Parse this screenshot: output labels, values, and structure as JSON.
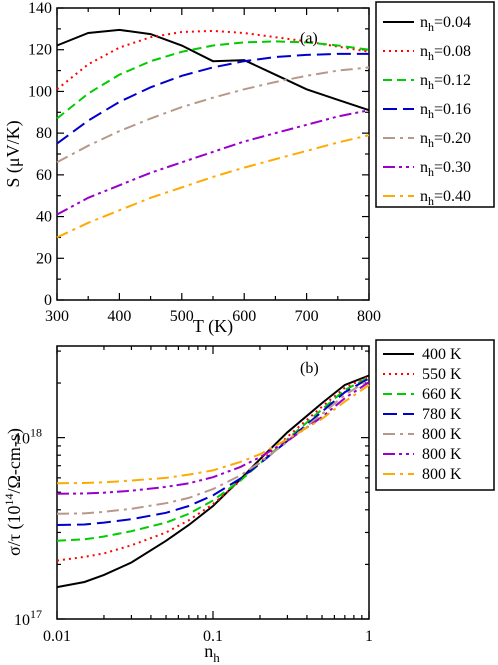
{
  "chart_data": [
    {
      "type": "line",
      "panel_label": "(a)",
      "xlabel": "T (K)",
      "ylabel": "S (μV/K)",
      "xlim": [
        300,
        800
      ],
      "ylim": [
        0,
        140
      ],
      "xticks": [
        300,
        400,
        500,
        600,
        700,
        800
      ],
      "yticks": [
        0,
        20,
        40,
        60,
        80,
        100,
        120,
        140
      ],
      "grid": false,
      "legend_position": "outside-right",
      "x": [
        300,
        350,
        400,
        450,
        500,
        550,
        600,
        650,
        700,
        750,
        800
      ],
      "series": [
        {
          "name": "n",
          "subscript": "h",
          "suffix": "=0.04",
          "color": "#000000",
          "dash": "",
          "values": [
            122,
            128,
            129.5,
            127.5,
            122,
            114.5,
            115,
            108,
            101,
            96,
            91
          ]
        },
        {
          "name": "n",
          "subscript": "h",
          "suffix": "=0.08",
          "color": "#ff0000",
          "dash": "2,4",
          "values": [
            101,
            113,
            121,
            126,
            128.5,
            129,
            128,
            126,
            124,
            121.5,
            119
          ]
        },
        {
          "name": "n",
          "subscript": "h",
          "suffix": "=0.12",
          "color": "#00cc00",
          "dash": "9,5",
          "values": [
            87,
            99,
            108,
            114.5,
            119,
            122,
            123.5,
            124,
            123.5,
            122,
            120
          ]
        },
        {
          "name": "n",
          "subscript": "h",
          "suffix": "=0.16",
          "color": "#0000cc",
          "dash": "14,6",
          "values": [
            75,
            86,
            95,
            102,
            107.5,
            111.5,
            114.5,
            116.5,
            117.5,
            118,
            118
          ]
        },
        {
          "name": "n",
          "subscript": "h",
          "suffix": "=0.20",
          "color": "#b8988a",
          "dash": "12,5,3,5",
          "values": [
            66,
            74,
            81,
            87,
            92.5,
            97,
            101,
            104.5,
            107.5,
            110,
            111.5
          ]
        },
        {
          "name": "n",
          "subscript": "h",
          "suffix": "=0.30",
          "color": "#9900cc",
          "dash": "12,4,3,4,3,4",
          "values": [
            41,
            49,
            55,
            61,
            66,
            71,
            76,
            80,
            84,
            88,
            91
          ]
        },
        {
          "name": "n",
          "subscript": "h",
          "suffix": "=0.40",
          "color": "#ffaa00",
          "dash": "12,5,3,5",
          "values": [
            30,
            37,
            43,
            49,
            54,
            59,
            63.5,
            67.5,
            71.5,
            75.5,
            79
          ]
        }
      ]
    },
    {
      "type": "line",
      "panel_label": "(b)",
      "xlabel": "n",
      "xlabel_sub": "h",
      "ylabel": "σ/τ (10",
      "ylabel_sup": "14",
      "ylabel_tail": "/Ω-cm-s)",
      "xscale": "log",
      "yscale": "log",
      "xlim": [
        0.01,
        1
      ],
      "ylim": [
        1e+17,
        3.2e+18
      ],
      "xtick_labels": [
        {
          "value": 0.01,
          "label": "0.01"
        },
        {
          "value": 0.1,
          "label": "0.1"
        },
        {
          "value": 1,
          "label": "1"
        }
      ],
      "ytick_labels": [
        {
          "value": 1e+17,
          "base": "10",
          "exp": "17"
        },
        {
          "value": 1e+18,
          "base": "10",
          "exp": "18"
        }
      ],
      "grid": false,
      "legend_position": "outside-right",
      "x": [
        0.01,
        0.015,
        0.02,
        0.03,
        0.05,
        0.07,
        0.1,
        0.15,
        0.2,
        0.3,
        0.5,
        0.7,
        1.0
      ],
      "series": [
        {
          "name": "400 K",
          "color": "#000000",
          "dash": "",
          "values": [
            1.5e+17,
            1.6e+17,
            1.75e+17,
            2.05e+17,
            2.7e+17,
            3.3e+17,
            4.2e+17,
            5.9e+17,
            7.6e+17,
            1.07e+18,
            1.55e+18,
            1.95e+18,
            2.2e+18
          ]
        },
        {
          "name": "550 K",
          "color": "#ff0000",
          "dash": "2,4",
          "values": [
            2.1e+17,
            2.2e+17,
            2.3e+17,
            2.55e+17,
            3e+17,
            3.5e+17,
            4.3e+17,
            5.8e+17,
            7.3e+17,
            1.01e+18,
            1.48e+18,
            1.88e+18,
            2.18e+18
          ]
        },
        {
          "name": "660 K",
          "color": "#00cc00",
          "dash": "9,5",
          "values": [
            2.7e+17,
            2.75e+17,
            2.85e+17,
            3.05e+17,
            3.4e+17,
            3.8e+17,
            4.5e+17,
            5.8e+17,
            7.2e+17,
            9.8e+17,
            1.43e+18,
            1.83e+18,
            2.15e+18
          ]
        },
        {
          "name": "780 K",
          "color": "#0000cc",
          "dash": "14,6",
          "values": [
            3.3e+17,
            3.32e+17,
            3.4e+17,
            3.55e+17,
            3.85e+17,
            4.2e+17,
            4.8e+17,
            5.95e+17,
            7.2e+17,
            9.6e+17,
            1.39e+18,
            1.78e+18,
            2.12e+18
          ]
        },
        {
          "name": "800 K",
          "color": "#b8988a",
          "dash": "12,5,3,5",
          "values": [
            3.8e+17,
            3.82e+17,
            3.9e+17,
            4.05e+17,
            4.35e+17,
            4.65e+17,
            5.2e+17,
            6.2e+17,
            7.3e+17,
            9.5e+17,
            1.35e+18,
            1.72e+18,
            2.08e+18
          ]
        },
        {
          "name": "800 K",
          "color": "#9900cc",
          "dash": "12,4,3,4,3,4",
          "values": [
            4.9e+17,
            4.92e+17,
            4.97e+17,
            5.1e+17,
            5.35e+17,
            5.6e+17,
            6.05e+17,
            6.9e+17,
            7.8e+17,
            9.6e+17,
            1.3e+18,
            1.65e+18,
            2.02e+18
          ]
        },
        {
          "name": "800 K",
          "color": "#ffaa00",
          "dash": "12,5,3,5",
          "values": [
            5.6e+17,
            5.62e+17,
            5.67e+17,
            5.8e+17,
            6e+17,
            6.25e+17,
            6.6e+17,
            7.35e+17,
            8.1e+17,
            9.8e+17,
            1.27e+18,
            1.58e+18,
            1.95e+18
          ]
        }
      ]
    }
  ]
}
